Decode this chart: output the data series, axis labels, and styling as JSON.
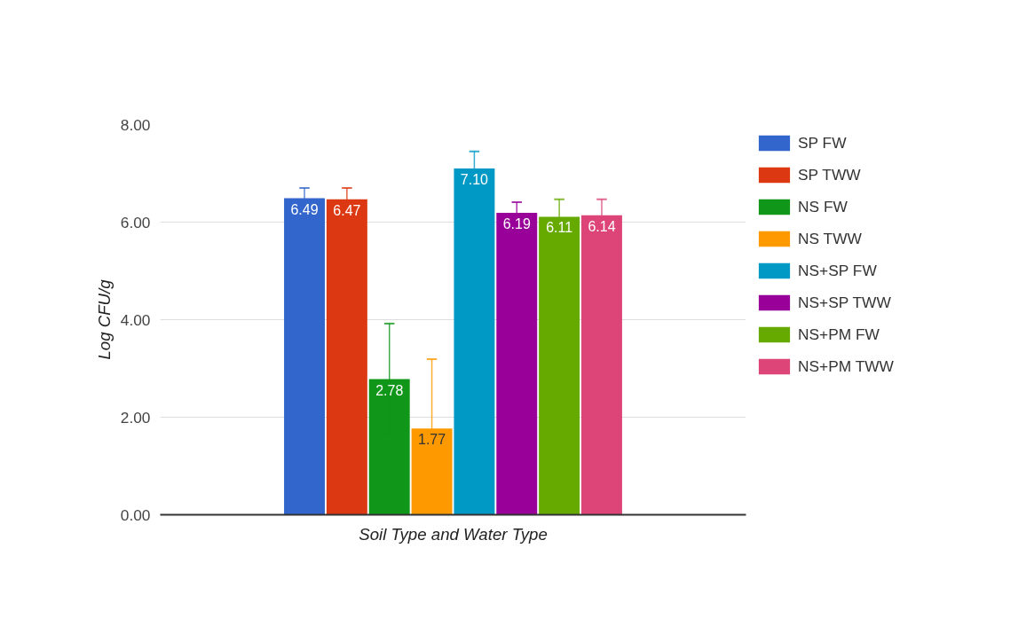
{
  "chart_data": {
    "type": "bar",
    "xlabel": "Soil Type and Water Type",
    "ylabel": "Log CFU/g",
    "categories": [
      null
    ],
    "series": [
      {
        "name": "SP FW",
        "color": "#3366cc",
        "values": [
          6.49
        ],
        "errors": [
          0.21
        ],
        "value_labels": [
          "6.49"
        ]
      },
      {
        "name": "SP TWW",
        "color": "#dc3912",
        "values": [
          6.47
        ],
        "errors": [
          0.23
        ],
        "value_labels": [
          "6.47"
        ]
      },
      {
        "name": "NS FW",
        "color": "#109618",
        "values": [
          2.78
        ],
        "errors": [
          1.14
        ],
        "value_labels": [
          "2.78"
        ]
      },
      {
        "name": "NS TWW",
        "color": "#ff9900",
        "values": [
          1.77
        ],
        "errors": [
          1.42
        ],
        "value_labels": [
          "1.77"
        ]
      },
      {
        "name": "NS+SP FW",
        "color": "#0099c6",
        "values": [
          7.1
        ],
        "errors": [
          0.35
        ],
        "value_labels": [
          "7.10"
        ]
      },
      {
        "name": "NS+SP TWW",
        "color": "#990099",
        "values": [
          6.19
        ],
        "errors": [
          0.22
        ],
        "value_labels": [
          "6.19"
        ]
      },
      {
        "name": "NS+PM FW",
        "color": "#66aa00",
        "values": [
          6.11
        ],
        "errors": [
          0.36
        ],
        "value_labels": [
          "6.11"
        ]
      },
      {
        "name": "NS+PM TWW",
        "color": "#dd4477",
        "values": [
          6.14
        ],
        "errors": [
          0.33
        ],
        "value_labels": [
          "6.14"
        ]
      }
    ],
    "ylim": [
      0,
      8
    ],
    "yticks": [
      {
        "value": 0,
        "label": "0.00"
      },
      {
        "value": 2,
        "label": "2.00"
      },
      {
        "value": 4,
        "label": "4.00"
      },
      {
        "value": 6,
        "label": "6.00"
      },
      {
        "value": 8,
        "label": "8.00"
      }
    ],
    "grid": "y",
    "legend": "right"
  }
}
